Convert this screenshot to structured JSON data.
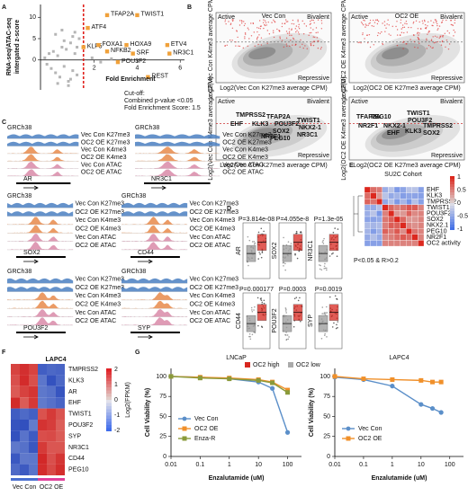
{
  "panel_labels": [
    "A",
    "B",
    "C",
    "D",
    "E",
    "F",
    "G"
  ],
  "chart_data": [
    {
      "type": "scatter",
      "x_label": "Fold Enrichment",
      "y_label": [
        "RNA-seq/ATAC-seq",
        "intergated z-score"
      ],
      "xlim": [
        -0.5,
        6.2
      ],
      "xticks": [
        2,
        4,
        6
      ],
      "ylim": [
        -7,
        13
      ],
      "yticks": [
        0,
        5,
        10
      ],
      "cutoff": 1.5,
      "cutoff_color": "#e0201b",
      "cutoff_text": [
        "Cut-off:",
        "Combined p-value <0.05",
        "Fold Enrichment Score: 1.5"
      ],
      "series": [
        {
          "color": "#b5b5b5",
          "x": [
            -0.3,
            -0.2,
            -0.1,
            0,
            0.1,
            0.2,
            0.3,
            0.4,
            0.5,
            0.6,
            0.7,
            0.8,
            0.9,
            1.0,
            1.1,
            1.2,
            1.3,
            0.2,
            0.5,
            0.8,
            1.0,
            1.2,
            0.3,
            0.6,
            0.9,
            1.1,
            1.9,
            2.3,
            2.8
          ],
          "values": [
            0.5,
            -1,
            1.5,
            -2,
            2,
            -3,
            1,
            -4,
            3,
            -1.5,
            2.5,
            -5,
            4,
            -2.5,
            1.5,
            -3.5,
            5,
            6,
            7,
            -6,
            5.5,
            3,
            -5.5,
            4.5,
            -4.5,
            6.5,
            0.5,
            -0.5,
            0.3
          ]
        },
        {
          "color": "#f0a13a",
          "x": [
            2.6,
            4.0,
            1.7,
            1.5,
            2.2,
            2.6,
            3.5,
            3.8,
            5.4,
            5.5,
            3.1,
            4.5
          ],
          "values": [
            10.5,
            10.5,
            7.5,
            3,
            3.5,
            2,
            3.5,
            1.5,
            3.5,
            1.5,
            -0.5,
            -4
          ],
          "labels": [
            "TFAP2A",
            "TWIST1",
            "ATF4",
            "KLF5",
            "FOXA1",
            "NFKB2",
            "HOXA9",
            "SRF",
            "ETV4",
            "NR3C1",
            "POU3F2",
            "REST"
          ]
        }
      ]
    },
    {
      "type": "line",
      "title": "LNCaP",
      "x_label": "Enzalutamide (uM)",
      "y_label": "Cell Viability (%)",
      "x_log": true,
      "xlim": [
        0.01,
        300
      ],
      "xticks": [
        0.01,
        0.1,
        1,
        10,
        100
      ],
      "ylim": [
        0,
        110
      ],
      "yticks": [
        0,
        25,
        50,
        75,
        100
      ],
      "legend": "bottom-left",
      "series": [
        {
          "name": "Vec Con",
          "color": "#5b8fc9",
          "marker": "circle",
          "x": [
            0.01,
            0.1,
            1,
            10,
            30,
            100
          ],
          "values": [
            100,
            99,
            97,
            93,
            85,
            30
          ]
        },
        {
          "name": "OC2 OE",
          "color": "#f0902a",
          "marker": "square",
          "x": [
            0.01,
            0.1,
            1,
            10,
            30,
            100
          ],
          "values": [
            100,
            99,
            98,
            96,
            93,
            83
          ]
        },
        {
          "name": "Enza-R",
          "color": "#8a9a3a",
          "marker": "square",
          "x": [
            0.01,
            0.1,
            1,
            10,
            30,
            100
          ],
          "values": [
            100,
            98,
            97,
            95,
            92,
            80
          ]
        }
      ]
    },
    {
      "type": "line",
      "title": "LAPC4",
      "x_label": "Enzalutamide (uM)",
      "y_label": "Cell Viability (%)",
      "x_log": true,
      "xlim": [
        0.01,
        300
      ],
      "xticks": [
        0.01,
        0.1,
        1,
        10,
        100
      ],
      "ylim": [
        0,
        110
      ],
      "yticks": [
        0,
        25,
        50,
        75,
        100
      ],
      "legend": "bottom-left",
      "series": [
        {
          "name": "Vec Con",
          "color": "#5b8fc9",
          "marker": "circle",
          "x": [
            0.01,
            0.1,
            1,
            10,
            25,
            50
          ],
          "values": [
            99,
            96,
            88,
            65,
            60,
            55
          ]
        },
        {
          "name": "OC2 OE",
          "color": "#f0902a",
          "marker": "square",
          "x": [
            0.01,
            0.1,
            1,
            10,
            25,
            50
          ],
          "values": [
            100,
            97,
            96,
            95,
            93,
            93
          ]
        }
      ]
    }
  ],
  "panel_b": {
    "titles": [
      "Vec Con",
      "OC2 OE"
    ],
    "corners": [
      "Active",
      "Bivalent",
      "Repressive"
    ],
    "y_labels": [
      "Log2(Vec Con K4me3 average CPM)",
      "Log2(OC2 OE K4me3 average CPM)"
    ],
    "x_labels": [
      "Log2(Vec Con K27me3 average CPM)",
      "Log2(OC2 OE K27me3 average CPM)"
    ],
    "genes": [
      [
        {
          "label": "TMPRSS2",
          "color": "#2a4fcf"
        },
        {
          "label": "EHF",
          "color": "#2a4fcf"
        },
        {
          "label": "KLK3",
          "color": "#2a4fcf"
        },
        {
          "label": "TFAP2A",
          "color": "#d7261e"
        },
        {
          "label": "POU3F2",
          "color": "#d7261e"
        },
        {
          "label": "SOX2",
          "color": "#d7261e"
        },
        {
          "label": "TWIST1",
          "color": "#d7261e"
        },
        {
          "label": "NKX2-1",
          "color": "#d7261e"
        },
        {
          "label": "NR2F1",
          "color": "#d7261e"
        },
        {
          "label": "PEG10",
          "color": "#d7261e"
        },
        {
          "label": "NR3C1",
          "color": "#d7261e"
        }
      ],
      [
        {
          "label": "TFAP2A",
          "color": "#d7261e"
        },
        {
          "label": "PEG10",
          "color": "#d7261e"
        },
        {
          "label": "NR2F1",
          "color": "#d7261e"
        },
        {
          "label": "TWIST1",
          "color": "#d7261e"
        },
        {
          "label": "POU3F2",
          "color": "#d7261e"
        },
        {
          "label": "TMPRSS2",
          "color": "#2a4fcf"
        },
        {
          "label": "EHF",
          "color": "#2a4fcf"
        },
        {
          "label": "NKX2-1",
          "color": "#d7261e"
        },
        {
          "label": "KLK3",
          "color": "#2a4fcf"
        },
        {
          "label": "SOX2",
          "color": "#d7261e"
        }
      ]
    ]
  },
  "panel_c": {
    "assembly": "GRCh38",
    "tracks": [
      "Vec Con K27me3",
      "OC2 OE K27me3",
      "Vec Con K4me3",
      "OC2 OE K4me3",
      "Vec Con ATAC",
      "OC2 OE ATAC"
    ],
    "genes": [
      "AR",
      "NR3C1",
      "SOX2",
      "CD44",
      "POU3F2",
      "SYP"
    ]
  },
  "panel_d": {
    "genes": [
      "AR",
      "SOX2",
      "NR3C1",
      "CD44",
      "POU3F2",
      "SYP"
    ],
    "p_values": [
      "P=3.814e-08",
      "P=4.055e-8",
      "P=1.3e-05",
      "P=0.000177",
      "P=0.0003",
      "P=0.0019"
    ],
    "legend": [
      "OC2 high",
      "OC2 low"
    ]
  },
  "panel_e": {
    "title": "SU2C Cohort",
    "rows": [
      "EHF",
      "KLK3",
      "TMPRSS2",
      "TWIST1",
      "POU3F2",
      "SOX2",
      "NKX2.1",
      "PEG10",
      "NR2F1",
      "OC2 activity"
    ],
    "note": "P<0.05 & R>0.2",
    "scale_ticks": [
      1,
      0.5,
      0,
      -0.5,
      -1
    ]
  },
  "panel_f": {
    "title": "LAPC4",
    "rows": [
      "TMPRSS2",
      "KLK3",
      "AR",
      "EHF",
      "TWIST1",
      "POU3F2",
      "SYP",
      "NR3C1",
      "CD44",
      "PEG10"
    ],
    "columns": [
      "Vec Con",
      "OC2 OE"
    ],
    "scale_label": "Log2(FPKM)",
    "scale_ticks": [
      2,
      1,
      0,
      -1,
      -2
    ]
  }
}
